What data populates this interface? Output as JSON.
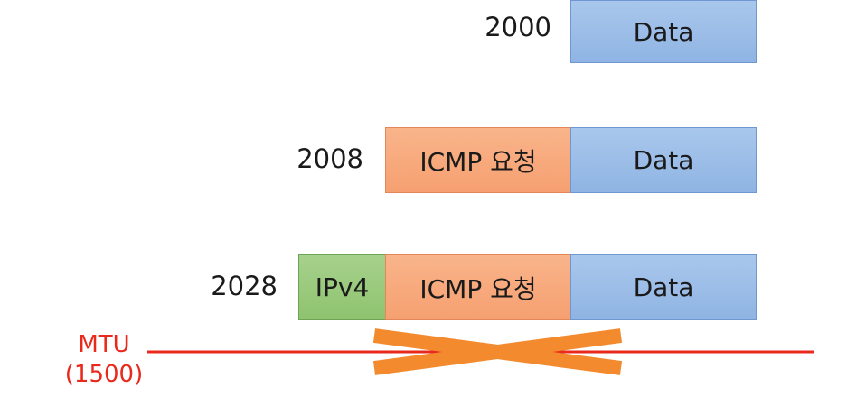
{
  "rows": [
    {
      "size": "2000",
      "segments": [
        {
          "kind": "data",
          "label": "Data"
        }
      ]
    },
    {
      "size": "2008",
      "segments": [
        {
          "kind": "icmp",
          "label": "ICMP 요청"
        },
        {
          "kind": "data",
          "label": "Data"
        }
      ]
    },
    {
      "size": "2028",
      "segments": [
        {
          "kind": "ipv4",
          "label": "IPv4"
        },
        {
          "kind": "icmp",
          "label": "ICMP 요청"
        },
        {
          "kind": "data",
          "label": "Data"
        }
      ]
    }
  ],
  "mtu": {
    "label": "MTU",
    "value": "(1500)"
  },
  "colors": {
    "data": "#9bbde8",
    "icmp": "#f8ab7e",
    "ipv4": "#9aca7d",
    "mtu_line": "#e8291c",
    "cross": "#f38a2e"
  }
}
